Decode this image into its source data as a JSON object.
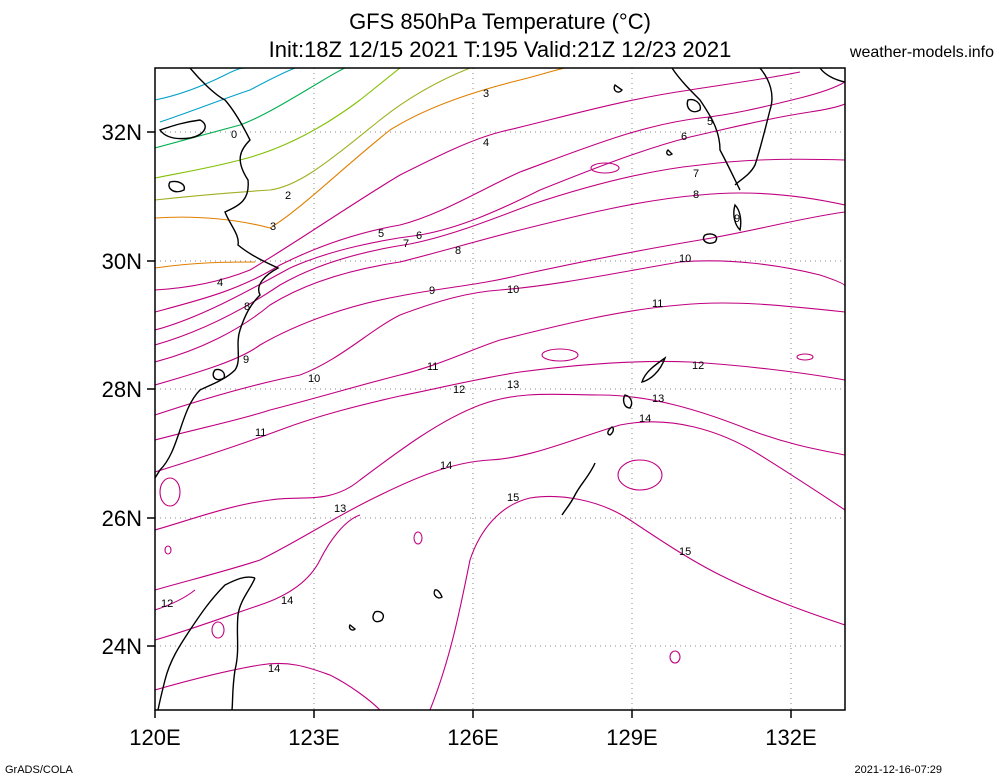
{
  "title": {
    "line1": "GFS 850hPa Temperature (°C)",
    "line2": "Init:18Z 12/15 2021 T:195 Valid:21Z 12/23 2021"
  },
  "source": "weather-models.info",
  "footer": {
    "left": "GrADS/COLA",
    "right": "2021-12-16-07:29"
  },
  "map": {
    "lon_range": [
      120,
      133
    ],
    "lat_range": [
      23,
      33
    ],
    "x_ticks": [
      "120E",
      "123E",
      "126E",
      "129E",
      "132E"
    ],
    "y_ticks": [
      "32N",
      "30N",
      "28N",
      "26N",
      "24N"
    ],
    "grid": "dotted",
    "colors": {
      "coast": "#000000",
      "cold_0": "#00a0c8",
      "cold_1": "#00b050",
      "mid_2": "#80c000",
      "warm_3": "#e08000",
      "warm_4plus": "#c00080"
    }
  },
  "contour_labels": [
    {
      "text": "0"
    },
    {
      "text": "2"
    },
    {
      "text": "3"
    },
    {
      "text": "3"
    },
    {
      "text": "4"
    },
    {
      "text": "4"
    },
    {
      "text": "5"
    },
    {
      "text": "5"
    },
    {
      "text": "6"
    },
    {
      "text": "6"
    },
    {
      "text": "7"
    },
    {
      "text": "7"
    },
    {
      "text": "8"
    },
    {
      "text": "8"
    },
    {
      "text": "8"
    },
    {
      "text": "9"
    },
    {
      "text": "9"
    },
    {
      "text": "9"
    },
    {
      "text": "10"
    },
    {
      "text": "10"
    },
    {
      "text": "10"
    },
    {
      "text": "11"
    },
    {
      "text": "11"
    },
    {
      "text": "11"
    },
    {
      "text": "12"
    },
    {
      "text": "12"
    },
    {
      "text": "12"
    },
    {
      "text": "13"
    },
    {
      "text": "13"
    },
    {
      "text": "13"
    },
    {
      "text": "14"
    },
    {
      "text": "14"
    },
    {
      "text": "14"
    },
    {
      "text": "14"
    },
    {
      "text": "15"
    },
    {
      "text": "15"
    }
  ]
}
